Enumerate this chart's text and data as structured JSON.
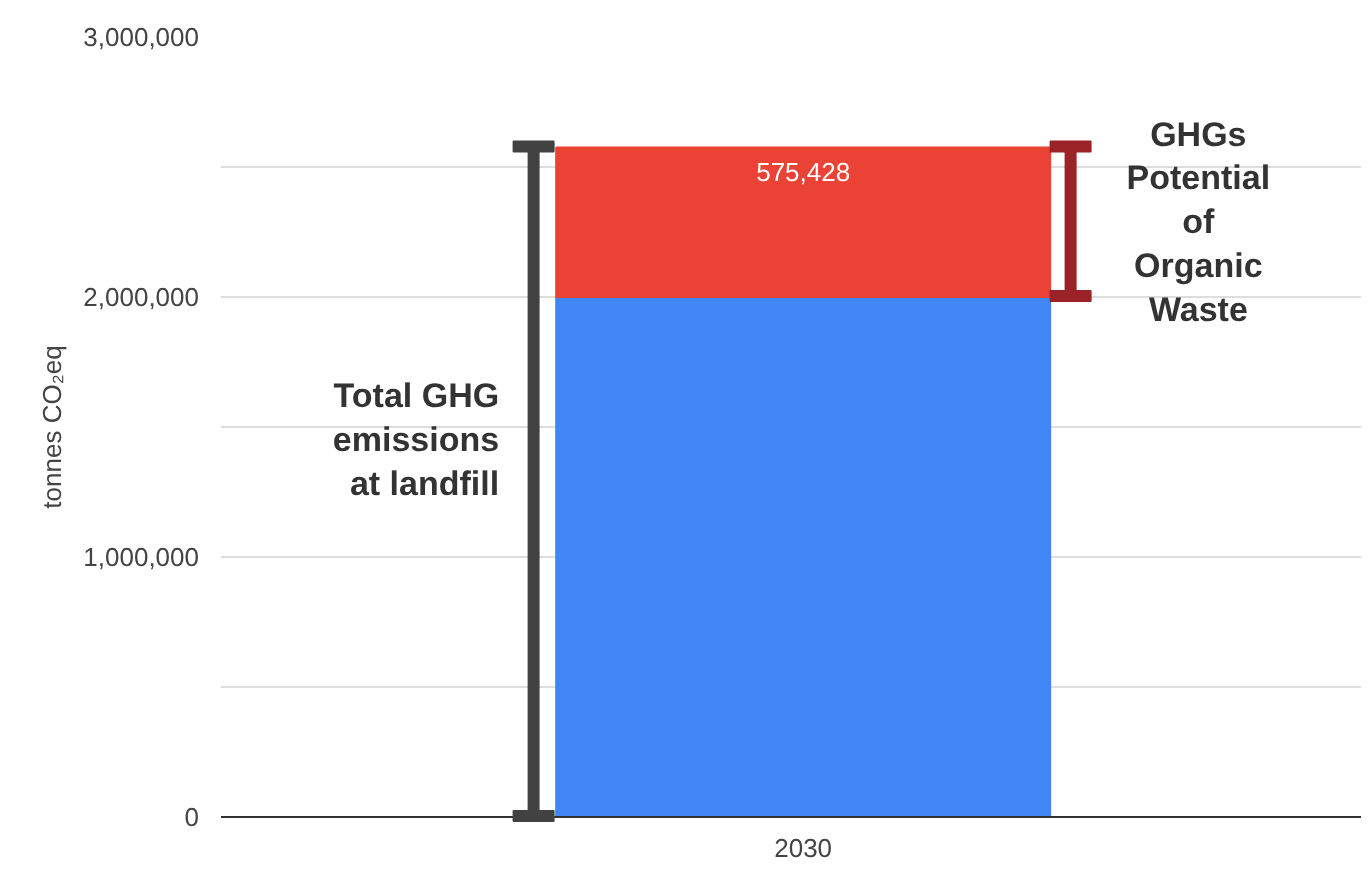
{
  "chart_data": {
    "type": "bar",
    "stacked": true,
    "ylabel": "tonnes CO₂eq",
    "categories": [
      "2030"
    ],
    "series": [
      {
        "color": "#4285f4",
        "values": [
          2000000
        ]
      },
      {
        "color": "#ea4335",
        "values": [
          575428
        ],
        "value_labels": [
          "575,428"
        ]
      }
    ],
    "ylim": [
      0,
      3000000
    ],
    "yticks": [
      0,
      {
        "value": 500000,
        "label": null
      },
      {
        "value": 1000000,
        "label": "1,000,000"
      },
      {
        "value": 1500000,
        "label": null
      },
      {
        "value": 2000000,
        "label": "2,000,000"
      },
      {
        "value": 2500000,
        "label": null
      },
      {
        "value": 3000000,
        "label": "3,000,000"
      }
    ],
    "grid": "y",
    "annotations": [
      "Total GHG emissions at landfill",
      "GHGs Potential of Organic Waste"
    ]
  }
}
